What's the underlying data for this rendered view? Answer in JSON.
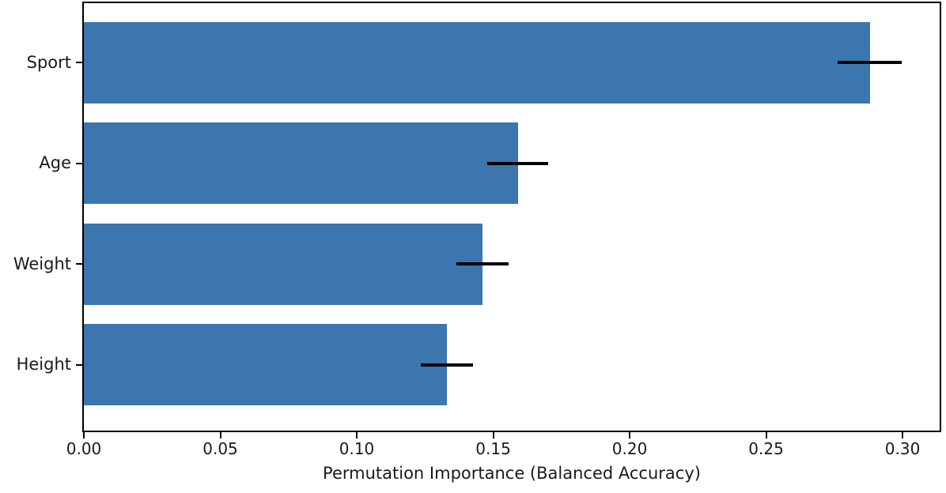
{
  "chart_data": {
    "type": "bar",
    "orientation": "horizontal",
    "title": "",
    "xlabel": "Permutation Importance (Balanced Accuracy)",
    "ylabel": "",
    "categories": [
      "Sport",
      "Age",
      "Weight",
      "Height"
    ],
    "values": [
      0.288,
      0.159,
      0.146,
      0.133
    ],
    "error_bars": [
      0.0117,
      0.0112,
      0.0095,
      0.0095
    ],
    "xlim": [
      0,
      0.3136
    ],
    "x_tick_values": [
      0,
      0.05,
      0.1,
      0.15,
      0.2,
      0.25,
      0.3
    ],
    "x_tick_labels": [
      "0.00",
      "0.05",
      "0.10",
      "0.15",
      "0.20",
      "0.25",
      "0.30"
    ],
    "grid": false,
    "legend": null,
    "bar_color": "#3B76AF",
    "error_bar_color": "#000000",
    "text_color": "#1a1a1a",
    "spine_color": "#000000",
    "background_color": "#ffffff"
  }
}
